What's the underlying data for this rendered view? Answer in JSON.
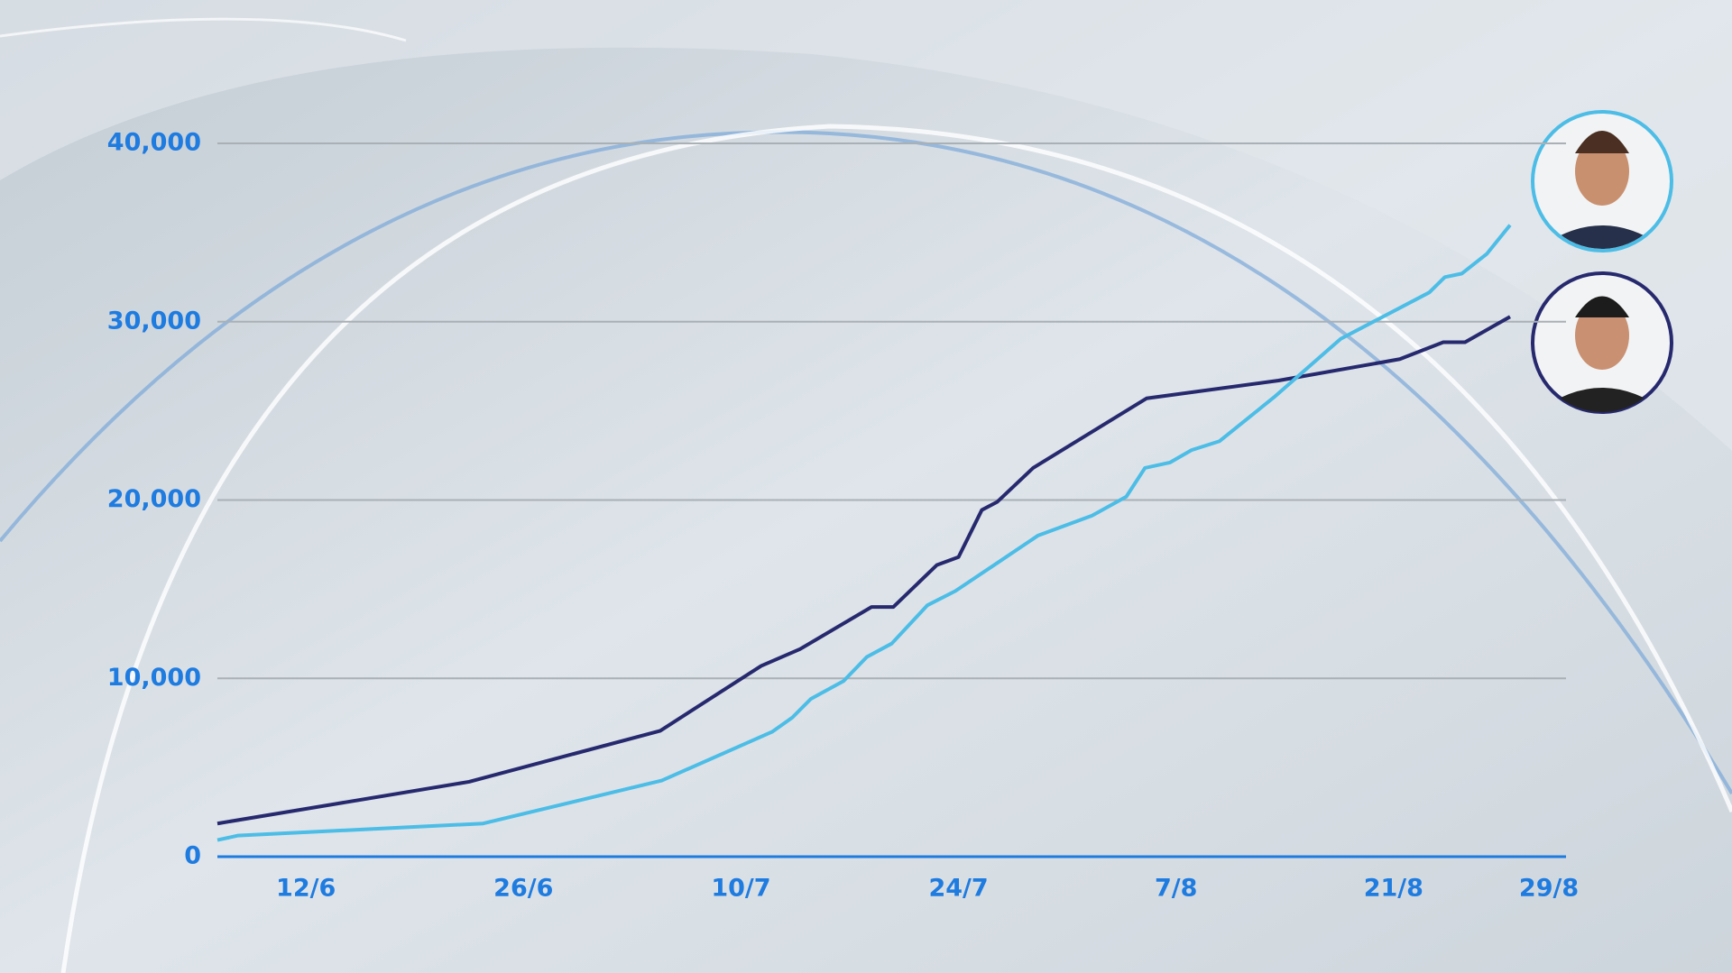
{
  "chart_data": {
    "type": "line",
    "x": [],
    "series": [
      {
        "color": "#26296e",
        "x": [
          6.3,
          22.5,
          34.8,
          41.3,
          43.8,
          48.4,
          49.8,
          52.6,
          54,
          55.5,
          56.5,
          58.8,
          66.1,
          74.6,
          82.4,
          85.2,
          86.6,
          89.5
        ],
        "values": [
          1860,
          4200,
          7060,
          10700,
          11640,
          14000,
          14000,
          16350,
          16800,
          19440,
          19900,
          21800,
          25700,
          26700,
          27900,
          28850,
          28850,
          30280
        ]
      },
      {
        "color": "#4cbde6",
        "x": [
          6.3,
          7.6,
          23.4,
          34.9,
          42,
          43.3,
          44.5,
          46.6,
          48.1,
          49.7,
          52,
          53.8,
          56.2,
          59.1,
          62.6,
          64.8,
          66,
          67.6,
          69,
          70.8,
          74.3,
          78.6,
          84.3,
          85.3,
          86.4,
          88,
          89.5
        ],
        "values": [
          930,
          1180,
          1860,
          4270,
          7000,
          7800,
          8850,
          9850,
          11200,
          11950,
          14100,
          14900,
          16300,
          18000,
          19130,
          20190,
          21800,
          22100,
          22800,
          23300,
          25760,
          29040,
          31640,
          32500,
          32700,
          33800,
          35420
        ]
      }
    ],
    "xlim": [
      6.3,
      93.1
    ],
    "xticks": [
      {
        "value": 12,
        "label": "12/6"
      },
      {
        "value": 26,
        "label": "26/6"
      },
      {
        "value": 40,
        "label": "10/7"
      },
      {
        "value": 54,
        "label": "24/7"
      },
      {
        "value": 68,
        "label": "7/8"
      },
      {
        "value": 82,
        "label": "21/8"
      },
      {
        "value": 92,
        "label": "29/8"
      }
    ],
    "ylim": [
      0,
      40000
    ],
    "yticks": [
      0,
      {
        "value": 10000,
        "label": "10,000"
      },
      {
        "value": 20000,
        "label": "20,000"
      },
      {
        "value": 30000,
        "label": "30,000"
      },
      {
        "value": 40000,
        "label": "40,000"
      }
    ],
    "grid": true
  }
}
